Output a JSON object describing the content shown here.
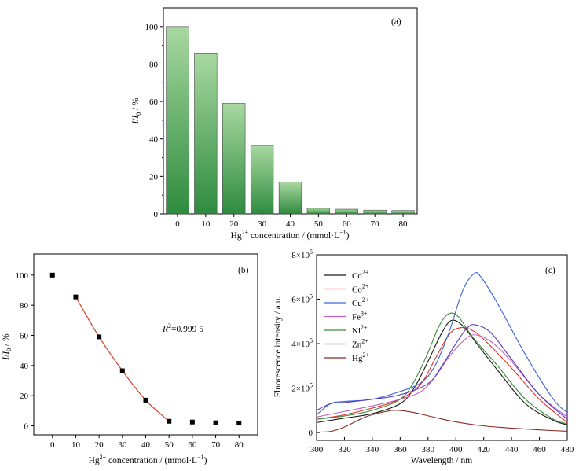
{
  "chart_data": [
    {
      "type": "bar",
      "panel_label": "(a)",
      "categories": [
        "0",
        "10",
        "20",
        "30",
        "40",
        "50",
        "60",
        "70",
        "80"
      ],
      "values": [
        100,
        85.5,
        59,
        36.5,
        17,
        3,
        2.5,
        2,
        1.8
      ],
      "xlabel": {
        "base": "Hg",
        "sup": "2+",
        "rest": " concentration / (mmol·L",
        "sup2": "−1",
        "end": ")"
      },
      "ylabel": {
        "main": "I",
        "sep": "/",
        "main2": "I",
        "sub": "0",
        "rest": " / %"
      },
      "yticks": [
        "0",
        "20",
        "40",
        "60",
        "80",
        "100"
      ],
      "ylim": [
        0,
        110
      ],
      "bar_color_top": "#a8d8a0",
      "bar_color_bottom": "#2e8b3f"
    },
    {
      "type": "scatter",
      "panel_label": "(b)",
      "x": [
        0,
        10,
        20,
        30,
        40,
        50,
        60,
        70,
        80
      ],
      "y": [
        100,
        85.5,
        59,
        36.5,
        17,
        3,
        2.5,
        2,
        1.8
      ],
      "fit": {
        "x_range": [
          10,
          50
        ],
        "color": "#d9402a"
      },
      "annotation": {
        "r": "R",
        "sup": "2",
        "value": "=0.999 5"
      },
      "xlabel": {
        "base": "Hg",
        "sup": "2+",
        "rest": " concentration / (mmol·L",
        "sup2": "−1",
        "end": ")"
      },
      "ylabel": {
        "main": "I",
        "sep": "/",
        "main2": "I",
        "sub": "0",
        "rest": " / %"
      },
      "xticks": [
        "0",
        "10",
        "20",
        "30",
        "40",
        "50",
        "60",
        "70",
        "80"
      ],
      "yticks": [
        "0",
        "20",
        "40",
        "60",
        "80",
        "100"
      ],
      "xlim": [
        -8,
        88
      ],
      "ylim": [
        -6,
        114
      ]
    },
    {
      "type": "line",
      "panel_label": "(c)",
      "xlabel": "Wavelength / nm",
      "ylabel": "Fluorescence intensity / a.u.",
      "xticks": [
        "300",
        "320",
        "340",
        "360",
        "380",
        "400",
        "420",
        "440",
        "460",
        "480"
      ],
      "yticks": [
        {
          "value": 0,
          "label": "0"
        },
        {
          "value": 200000,
          "base": "2×10",
          "sup": "5"
        },
        {
          "value": 400000,
          "base": "4×10",
          "sup": "5"
        },
        {
          "value": 600000,
          "base": "6×10",
          "sup": "5"
        },
        {
          "value": 800000,
          "base": "8×10",
          "sup": "5"
        }
      ],
      "xlim": [
        300,
        480
      ],
      "ylim": [
        -35000,
        800000
      ],
      "series": [
        {
          "name": "Cd",
          "sup": "2+",
          "color": "#1a1a1a",
          "points": [
            [
              300,
              45000
            ],
            [
              320,
              65000
            ],
            [
              340,
              85000
            ],
            [
              360,
              130000
            ],
            [
              370,
              200000
            ],
            [
              380,
              320000
            ],
            [
              390,
              450000
            ],
            [
              397,
              505000
            ],
            [
              405,
              480000
            ],
            [
              415,
              400000
            ],
            [
              430,
              280000
            ],
            [
              450,
              130000
            ],
            [
              470,
              55000
            ],
            [
              480,
              35000
            ]
          ]
        },
        {
          "name": "Co",
          "sup": "2+",
          "color": "#e0322a",
          "points": [
            [
              300,
              60000
            ],
            [
              320,
              80000
            ],
            [
              340,
              110000
            ],
            [
              360,
              150000
            ],
            [
              375,
              220000
            ],
            [
              385,
              330000
            ],
            [
              395,
              440000
            ],
            [
              402,
              470000
            ],
            [
              410,
              465000
            ],
            [
              420,
              420000
            ],
            [
              440,
              290000
            ],
            [
              460,
              150000
            ],
            [
              480,
              45000
            ]
          ]
        },
        {
          "name": "Cu",
          "sup": "2+",
          "color": "#3a66d0",
          "points": [
            [
              300,
              80000
            ],
            [
              310,
              130000
            ],
            [
              320,
              140000
            ],
            [
              340,
              150000
            ],
            [
              360,
              185000
            ],
            [
              375,
              225000
            ],
            [
              385,
              300000
            ],
            [
              395,
              450000
            ],
            [
              405,
              640000
            ],
            [
              413,
              715000
            ],
            [
              418,
              700000
            ],
            [
              430,
              580000
            ],
            [
              450,
              350000
            ],
            [
              470,
              150000
            ],
            [
              480,
              90000
            ]
          ]
        },
        {
          "name": "Fe",
          "sup": "3+",
          "color": "#c060c0",
          "points": [
            [
              300,
              70000
            ],
            [
              320,
              95000
            ],
            [
              340,
              120000
            ],
            [
              360,
              150000
            ],
            [
              375,
              185000
            ],
            [
              385,
              250000
            ],
            [
              395,
              340000
            ],
            [
              405,
              410000
            ],
            [
              413,
              440000
            ],
            [
              425,
              410000
            ],
            [
              440,
              320000
            ],
            [
              460,
              170000
            ],
            [
              480,
              70000
            ]
          ]
        },
        {
          "name": "Ni",
          "sup": "2+",
          "color": "#3a8a3a",
          "points": [
            [
              300,
              60000
            ],
            [
              320,
              75000
            ],
            [
              340,
              100000
            ],
            [
              360,
              150000
            ],
            [
              370,
              230000
            ],
            [
              380,
              360000
            ],
            [
              388,
              480000
            ],
            [
              395,
              535000
            ],
            [
              402,
              520000
            ],
            [
              412,
              430000
            ],
            [
              430,
              300000
            ],
            [
              450,
              150000
            ],
            [
              470,
              60000
            ],
            [
              480,
              40000
            ]
          ]
        },
        {
          "name": "Zn",
          "sup": "2+",
          "color": "#5a3ac0",
          "points": [
            [
              300,
              100000
            ],
            [
              310,
              130000
            ],
            [
              320,
              135000
            ],
            [
              340,
              150000
            ],
            [
              360,
              170000
            ],
            [
              380,
              220000
            ],
            [
              390,
              300000
            ],
            [
              400,
              400000
            ],
            [
              408,
              470000
            ],
            [
              414,
              485000
            ],
            [
              425,
              450000
            ],
            [
              440,
              330000
            ],
            [
              460,
              170000
            ],
            [
              480,
              60000
            ]
          ]
        },
        {
          "name": "Hg",
          "sup": "2+",
          "color": "#8a2a22",
          "points": [
            [
              300,
              2000
            ],
            [
              310,
              5000
            ],
            [
              320,
              25000
            ],
            [
              335,
              70000
            ],
            [
              350,
              95000
            ],
            [
              358,
              100000
            ],
            [
              370,
              90000
            ],
            [
              385,
              68000
            ],
            [
              400,
              48000
            ],
            [
              420,
              30000
            ],
            [
              440,
              20000
            ],
            [
              460,
              12000
            ],
            [
              480,
              6000
            ]
          ]
        }
      ]
    }
  ]
}
